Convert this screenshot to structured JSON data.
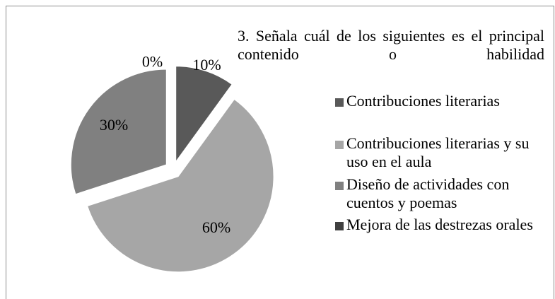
{
  "chart_data": {
    "type": "pie",
    "title": "3. Señala cuál de los siguientes es el principal contenido o habilidad",
    "categories": [
      "Contribuciones literarias",
      "Contribuciones literarias y su uso en el aula",
      "Diseño de actividades con cuentos y poemas",
      "Mejora de las destrezas orales"
    ],
    "values": [
      10,
      60,
      30,
      0
    ],
    "value_labels": [
      "10%",
      "60%",
      "30%",
      "0%"
    ],
    "colors": [
      "#595959",
      "#a6a6a6",
      "#808080",
      "#404040"
    ],
    "legend": "right"
  }
}
